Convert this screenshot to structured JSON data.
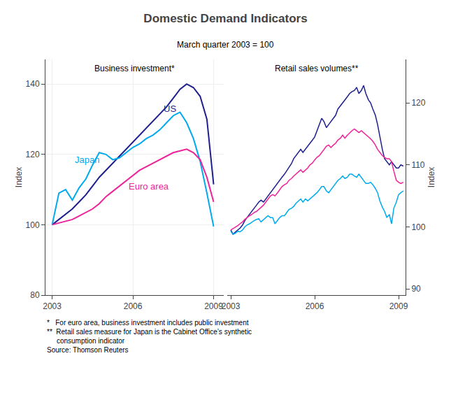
{
  "title": "Domestic Demand Indicators",
  "subtitle": "March quarter 2003 = 100",
  "notes": [
    "*   For euro area, business investment includes public investment",
    "**  Retail sales measure for Japan is the Cabinet Office’s synthetic",
    "     consumption indicator",
    "Source: Thomson Reuters"
  ],
  "chart_data": [
    {
      "type": "line",
      "title": "Business investment*",
      "ylabel": "Index",
      "xlim": [
        2002.75,
        2009.375
      ],
      "xticks": [
        2003,
        2006,
        2009
      ],
      "ylim": [
        80,
        147
      ],
      "yticks": [
        80,
        100,
        120,
        140
      ],
      "grid": true,
      "x": [
        2003.0,
        2003.25,
        2003.5,
        2003.75,
        2004.0,
        2004.25,
        2004.5,
        2004.75,
        2005.0,
        2005.25,
        2005.5,
        2005.75,
        2006.0,
        2006.25,
        2006.5,
        2006.75,
        2007.0,
        2007.25,
        2007.5,
        2007.75,
        2008.0,
        2008.25,
        2008.5,
        2008.75,
        2009.0
      ],
      "series": [
        {
          "name": "US",
          "color": "#1f1f8f",
          "values": [
            100.0,
            101.5,
            103.0,
            104.5,
            106.5,
            108.5,
            111.0,
            113.5,
            115.5,
            117.5,
            119.5,
            121.5,
            123.5,
            125.5,
            127.5,
            129.5,
            131.5,
            133.5,
            136.0,
            138.5,
            140.0,
            139.0,
            136.5,
            130.0,
            111.5
          ]
        },
        {
          "name": "Japan",
          "color": "#00aaee",
          "values": [
            100.0,
            109.0,
            110.0,
            107.0,
            110.5,
            113.0,
            117.0,
            120.5,
            120.0,
            118.5,
            119.0,
            120.5,
            122.0,
            123.0,
            124.5,
            125.5,
            127.0,
            129.0,
            131.0,
            132.0,
            129.0,
            124.5,
            118.0,
            109.0,
            99.5
          ]
        },
        {
          "name": "Euro area",
          "color": "#ee2299",
          "values": [
            100.0,
            100.5,
            101.0,
            101.5,
            102.5,
            103.5,
            104.5,
            106.0,
            108.0,
            109.5,
            111.0,
            112.5,
            114.0,
            115.5,
            116.5,
            117.5,
            118.5,
            119.5,
            120.5,
            121.0,
            121.5,
            120.5,
            118.5,
            113.5,
            106.5
          ]
        }
      ],
      "annotations": [
        {
          "text": "US",
          "x": 2007.1,
          "y": 133.0,
          "color": "#1f1f8f"
        },
        {
          "text": "Japan",
          "x": 2003.8,
          "y": 118.5,
          "color": "#00aaee"
        },
        {
          "text": "Euro area",
          "x": 2005.8,
          "y": 111.0,
          "color": "#ee2299"
        }
      ]
    },
    {
      "type": "line",
      "title": "Retail sales volumes**",
      "ylabel": "Index",
      "xlim": [
        2002.875,
        2009.25
      ],
      "xticks": [
        2003,
        2006,
        2009
      ],
      "ylim": [
        89,
        127
      ],
      "yticks": [
        90,
        100,
        110,
        120
      ],
      "grid": false,
      "x": [
        2003.0,
        2003.08,
        2003.17,
        2003.25,
        2003.33,
        2003.42,
        2003.5,
        2003.58,
        2003.67,
        2003.75,
        2003.83,
        2003.92,
        2004.0,
        2004.08,
        2004.17,
        2004.25,
        2004.33,
        2004.42,
        2004.5,
        2004.58,
        2004.67,
        2004.75,
        2004.83,
        2004.92,
        2005.0,
        2005.08,
        2005.17,
        2005.25,
        2005.33,
        2005.42,
        2005.5,
        2005.58,
        2005.67,
        2005.75,
        2005.83,
        2005.92,
        2006.0,
        2006.08,
        2006.17,
        2006.25,
        2006.33,
        2006.42,
        2006.5,
        2006.58,
        2006.67,
        2006.75,
        2006.83,
        2006.92,
        2007.0,
        2007.08,
        2007.17,
        2007.25,
        2007.33,
        2007.42,
        2007.5,
        2007.58,
        2007.67,
        2007.75,
        2007.83,
        2007.92,
        2008.0,
        2008.08,
        2008.17,
        2008.25,
        2008.33,
        2008.42,
        2008.5,
        2008.58,
        2008.67,
        2008.75,
        2008.83,
        2008.92,
        2009.0,
        2009.08,
        2009.17
      ],
      "series": [
        {
          "name": "US",
          "color": "#1f1f8f",
          "values": [
            99.5,
            98.8,
            99.2,
            99.5,
            99.8,
            100.3,
            101.0,
            101.5,
            102.0,
            102.5,
            103.0,
            103.5,
            104.0,
            104.3,
            104.0,
            104.5,
            105.0,
            105.5,
            106.0,
            106.5,
            107.0,
            107.5,
            108.0,
            108.5,
            109.0,
            109.5,
            110.2,
            111.0,
            111.5,
            112.0,
            112.5,
            112.0,
            112.5,
            113.0,
            113.5,
            114.0,
            114.5,
            115.5,
            116.5,
            117.5,
            117.0,
            116.0,
            116.5,
            117.0,
            117.5,
            118.0,
            119.0,
            119.5,
            120.0,
            120.5,
            121.0,
            121.5,
            121.8,
            122.0,
            122.5,
            121.5,
            122.0,
            122.8,
            121.5,
            120.5,
            120.0,
            119.0,
            118.0,
            116.5,
            114.5,
            112.5,
            111.0,
            110.5,
            110.0,
            110.5,
            110.0,
            109.5,
            109.5,
            110.0,
            109.8
          ]
        },
        {
          "name": "Japan",
          "color": "#00aaee",
          "values": [
            99.3,
            98.8,
            99.0,
            99.3,
            99.2,
            99.5,
            100.0,
            100.3,
            100.5,
            100.8,
            101.0,
            101.2,
            101.3,
            100.8,
            101.2,
            101.5,
            101.8,
            101.5,
            101.5,
            100.5,
            101.0,
            101.5,
            101.8,
            101.8,
            102.3,
            102.8,
            103.0,
            103.3,
            103.8,
            104.2,
            104.5,
            104.0,
            104.5,
            104.2,
            104.5,
            104.8,
            105.2,
            105.5,
            106.0,
            106.5,
            106.5,
            105.8,
            105.5,
            106.0,
            106.5,
            107.0,
            107.5,
            107.8,
            108.2,
            107.8,
            108.0,
            108.5,
            108.5,
            108.2,
            108.0,
            108.5,
            108.0,
            107.5,
            107.0,
            107.0,
            107.2,
            106.8,
            106.2,
            105.5,
            104.2,
            103.2,
            102.5,
            101.5,
            102.0,
            100.5,
            103.0,
            104.0,
            105.2,
            105.5,
            105.8
          ]
        },
        {
          "name": "Euro area",
          "color": "#ee2299",
          "values": [
            99.5,
            99.7,
            100.0,
            100.2,
            100.5,
            100.8,
            101.2,
            101.5,
            101.8,
            102.0,
            102.3,
            102.5,
            102.8,
            103.2,
            103.5,
            104.0,
            104.5,
            105.0,
            105.2,
            105.0,
            105.5,
            106.0,
            106.5,
            106.8,
            107.0,
            107.5,
            107.8,
            108.2,
            108.5,
            108.8,
            109.2,
            108.8,
            109.2,
            109.5,
            110.0,
            110.3,
            110.8,
            111.2,
            111.5,
            112.0,
            112.5,
            113.0,
            113.2,
            112.8,
            113.2,
            113.5,
            114.0,
            114.3,
            114.8,
            114.3,
            114.8,
            115.2,
            115.5,
            115.8,
            115.5,
            115.2,
            115.5,
            115.2,
            114.8,
            114.5,
            114.2,
            113.8,
            113.2,
            112.5,
            112.0,
            111.5,
            111.2,
            111.0,
            111.0,
            110.5,
            109.0,
            107.5,
            107.2,
            107.0,
            107.2
          ]
        }
      ]
    }
  ]
}
